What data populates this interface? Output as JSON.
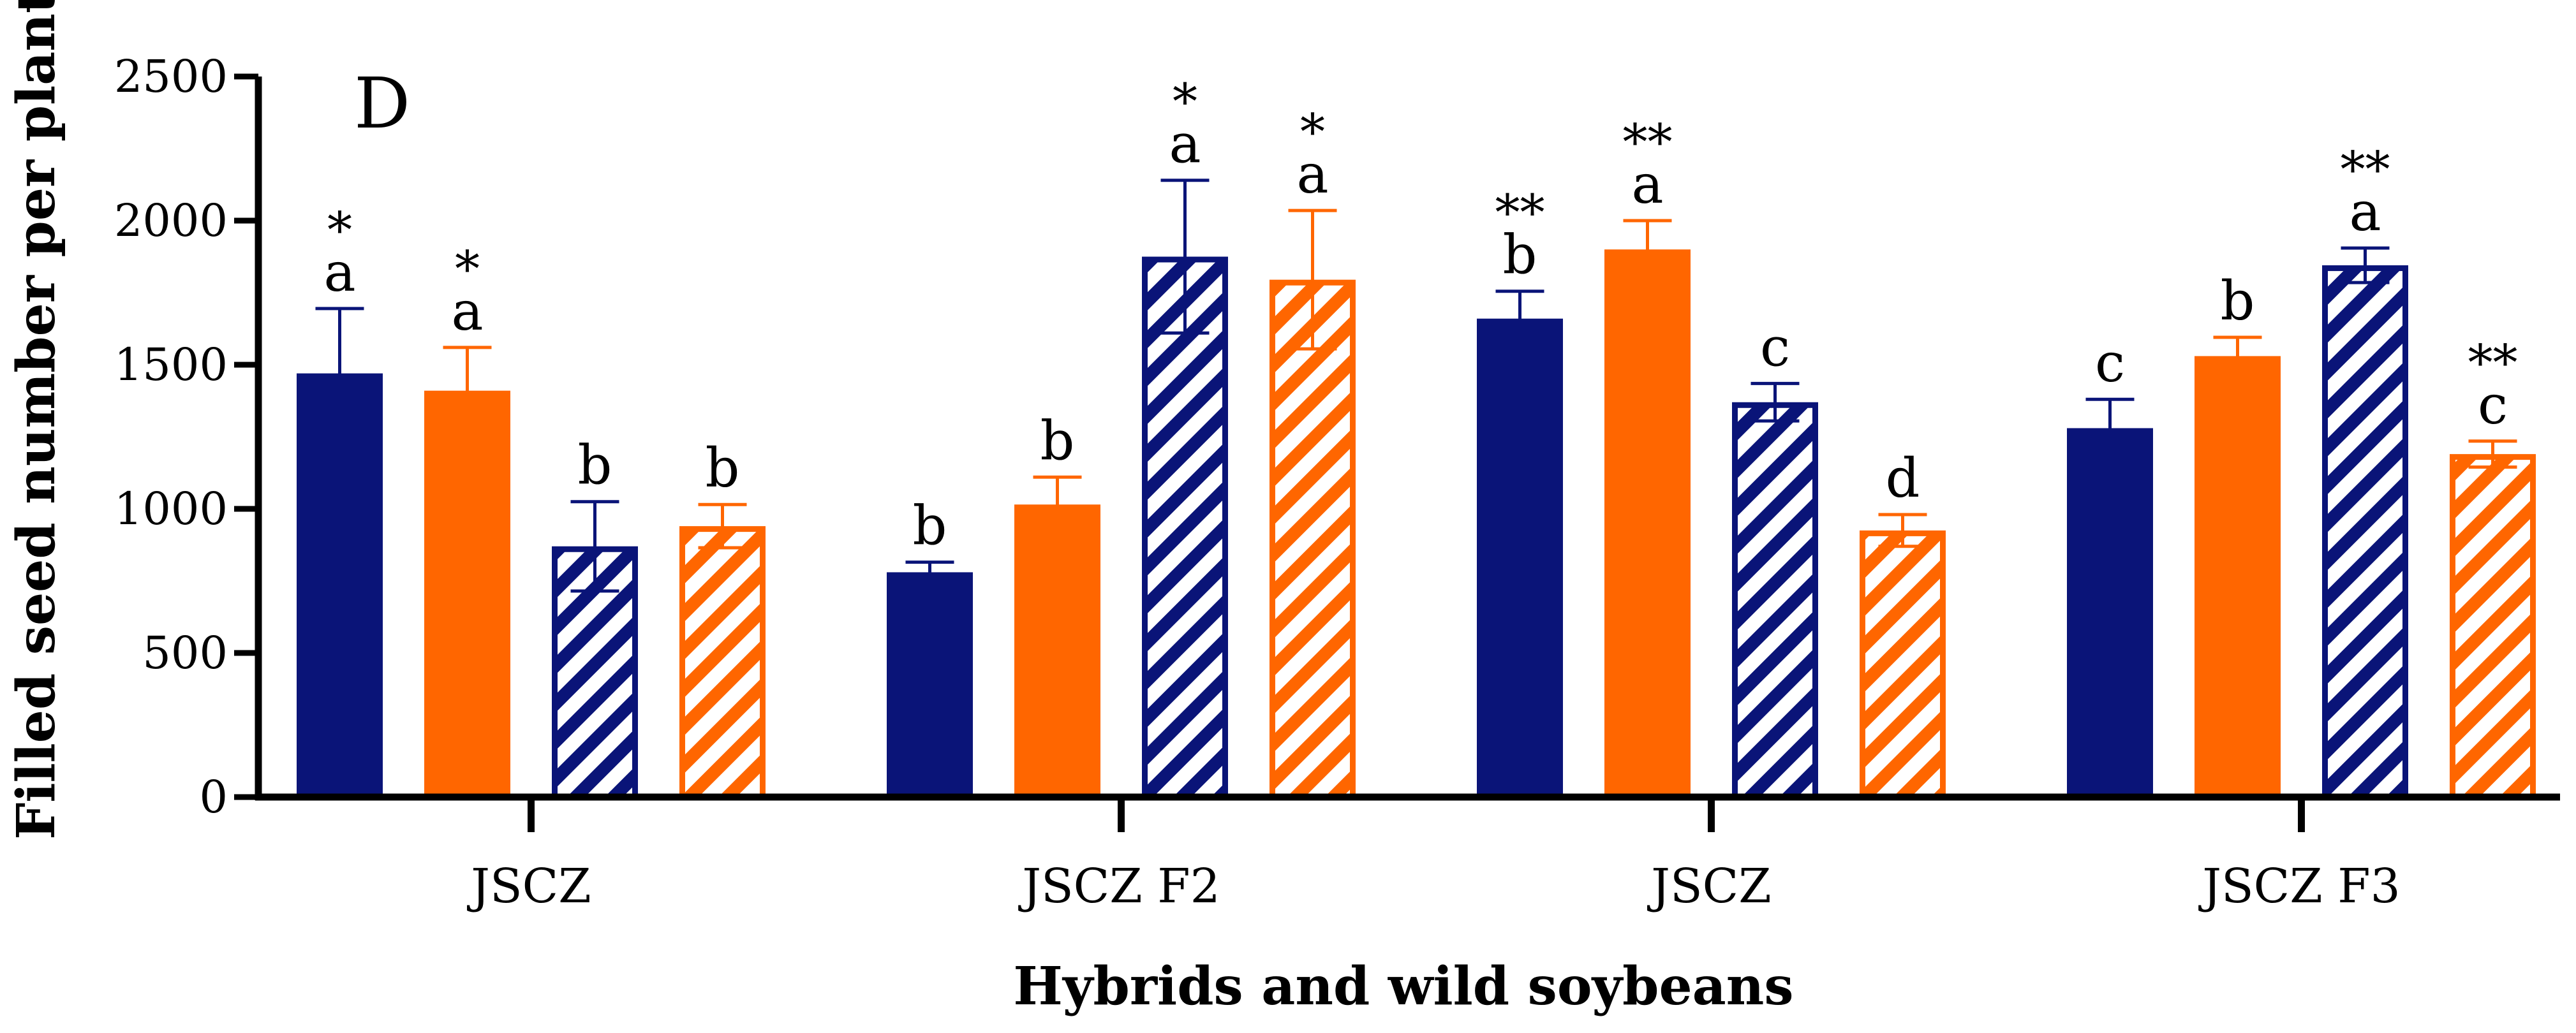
{
  "chart_data": {
    "type": "bar",
    "panel_label": "D",
    "xlabel": "Hybrids and wild soybeans",
    "ylabel": "Filled seed number per plant",
    "ylim": [
      0,
      2500
    ],
    "yticks": [
      0,
      500,
      1000,
      1500,
      2000,
      2500
    ],
    "grid": false,
    "categories": [
      "JSCZ",
      "JSCZ F2",
      "JSCZ",
      "JSCZ F3"
    ],
    "colors": {
      "navy": "#0a1478",
      "orange": "#ff6600"
    },
    "series": [
      {
        "fill": "solid",
        "color": "navy",
        "values": [
          1470,
          780,
          1660,
          1280
        ],
        "errors": [
          225,
          35,
          95,
          100
        ],
        "letters": [
          "a",
          "b",
          "b",
          "c"
        ],
        "stars": [
          "*",
          "",
          "**",
          ""
        ]
      },
      {
        "fill": "solid",
        "color": "orange",
        "values": [
          1410,
          1015,
          1900,
          1530
        ],
        "errors": [
          150,
          95,
          100,
          65
        ],
        "letters": [
          "a",
          "b",
          "a",
          "b"
        ],
        "stars": [
          "*",
          "",
          "**",
          ""
        ]
      },
      {
        "fill": "hatched",
        "color": "navy",
        "values": [
          870,
          1875,
          1370,
          1845
        ],
        "errors": [
          155,
          265,
          65,
          60
        ],
        "letters": [
          "b",
          "a",
          "c",
          "a"
        ],
        "stars": [
          "",
          "*",
          "",
          "**"
        ]
      },
      {
        "fill": "hatched",
        "color": "orange",
        "values": [
          940,
          1795,
          925,
          1190
        ],
        "errors": [
          75,
          240,
          55,
          45
        ],
        "letters": [
          "b",
          "a",
          "d",
          "c"
        ],
        "stars": [
          "",
          "*",
          "",
          "**"
        ]
      }
    ]
  }
}
